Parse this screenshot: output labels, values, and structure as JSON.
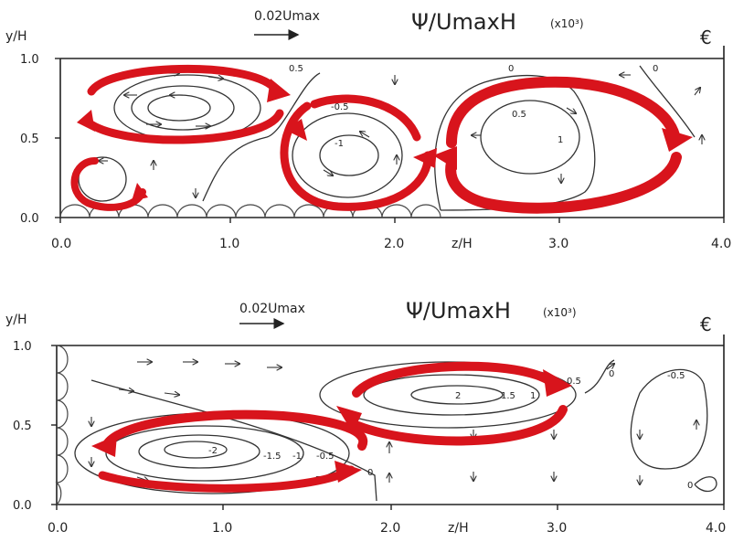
{
  "panels": [
    {
      "id": "top",
      "ylabel": "y/H",
      "xlabel": "z/H",
      "ref_vector_label": "0.02Umax",
      "title": "Ψ/UmaxH",
      "title_scale": "(x10³)",
      "centerline_symbol": "€",
      "yticks": [
        "0.0",
        "0.5",
        "1.0"
      ],
      "xticks": [
        "0.0",
        "1.0",
        "2.0",
        "3.0",
        "4.0"
      ],
      "contour_labels": [
        "0.5",
        "-0.5",
        "-1",
        "0.5",
        "0",
        "0",
        "1"
      ],
      "swirl_color": "#d8141c"
    },
    {
      "id": "bottom",
      "ylabel": "y/H",
      "xlabel": "z/H",
      "ref_vector_label": "0.02Umax",
      "title": "Ψ/UmaxH",
      "title_scale": "(x10³)",
      "centerline_symbol": "€",
      "yticks": [
        "0.0",
        "0.5",
        "1.0"
      ],
      "xticks": [
        "0.0",
        "1.0",
        "2.0",
        "3.0",
        "4.0"
      ],
      "contour_labels": [
        "-2",
        "-1.5",
        "-1",
        "-0.5",
        "0",
        "2",
        "1.5",
        "1",
        "0.5",
        "0",
        "-0.5",
        "0"
      ],
      "swirl_color": "#d8141c"
    }
  ]
}
